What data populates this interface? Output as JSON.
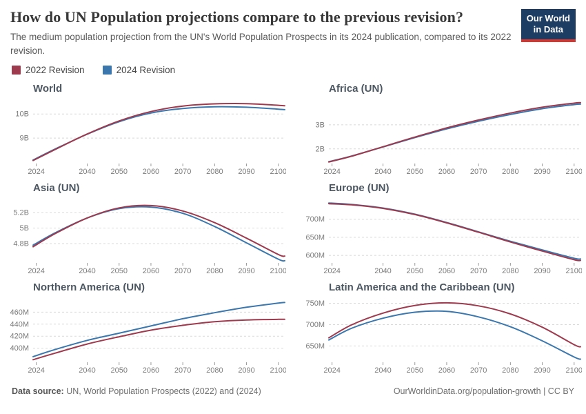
{
  "header": {
    "title": "How do UN Population projections compare to the previous revision?",
    "subtitle": "The medium population projection from the UN's World Population Prospects in its 2024 publication, compared to its 2022 revision.",
    "logo": {
      "line1": "Our World",
      "line2": "in Data"
    }
  },
  "legend": [
    {
      "label": "2022 Revision",
      "color": "#9e3a4d"
    },
    {
      "label": "2024 Revision",
      "color": "#3b77ad"
    }
  ],
  "colors": {
    "revision2022": "#9e3a4d",
    "revision2024": "#3b77ad",
    "grid": "#d8d8d8",
    "tick": "#999999",
    "logo_bg": "#1d3d63",
    "logo_bar": "#d8352e"
  },
  "x_axis": {
    "domain": [
      2023,
      2102
    ],
    "ticks": [
      2024,
      2040,
      2050,
      2060,
      2070,
      2080,
      2090,
      2100
    ]
  },
  "chart_data": [
    {
      "type": "line",
      "title": "World",
      "unit": "billion people",
      "x": [
        2023,
        2030,
        2040,
        2050,
        2060,
        2070,
        2080,
        2090,
        2100,
        2102
      ],
      "ylim": [
        8.0,
        10.55
      ],
      "yticks": [
        {
          "v": 9,
          "label": "9B"
        },
        {
          "v": 10,
          "label": "10B"
        }
      ],
      "series": [
        {
          "name": "2022 Revision",
          "color": "#9e3a4d",
          "values": [
            8.07,
            8.53,
            9.17,
            9.71,
            10.1,
            10.33,
            10.42,
            10.43,
            10.36,
            10.34
          ]
        },
        {
          "name": "2024 Revision",
          "color": "#3b77ad",
          "values": [
            8.09,
            8.55,
            9.16,
            9.68,
            10.04,
            10.23,
            10.3,
            10.28,
            10.2,
            10.18
          ]
        }
      ]
    },
    {
      "type": "line",
      "title": "Africa (UN)",
      "unit": "billion people",
      "x": [
        2023,
        2030,
        2040,
        2050,
        2060,
        2070,
        2080,
        2090,
        2100,
        2102
      ],
      "ylim": [
        1.45,
        4.0
      ],
      "yticks": [
        {
          "v": 2,
          "label": "2B"
        },
        {
          "v": 3,
          "label": "3B"
        }
      ],
      "series": [
        {
          "name": "2022 Revision",
          "color": "#9e3a4d",
          "values": [
            1.46,
            1.69,
            2.09,
            2.49,
            2.87,
            3.2,
            3.49,
            3.73,
            3.9,
            3.92
          ]
        },
        {
          "name": "2024 Revision",
          "color": "#3b77ad",
          "values": [
            1.47,
            1.7,
            2.08,
            2.47,
            2.83,
            3.15,
            3.43,
            3.67,
            3.84,
            3.86
          ]
        }
      ]
    },
    {
      "type": "line",
      "title": "Asia (UN)",
      "unit": "billion people",
      "x": [
        2023,
        2030,
        2040,
        2050,
        2060,
        2070,
        2080,
        2090,
        2100,
        2102
      ],
      "ylim": [
        4.57,
        5.36
      ],
      "yticks": [
        {
          "v": 4.8,
          "label": "4.8B"
        },
        {
          "v": 5,
          "label": "5B"
        },
        {
          "v": 5.2,
          "label": "5.2B"
        }
      ],
      "series": [
        {
          "name": "2022 Revision",
          "color": "#9e3a4d",
          "values": [
            4.76,
            4.93,
            5.13,
            5.26,
            5.29,
            5.22,
            5.07,
            4.87,
            4.66,
            4.64
          ]
        },
        {
          "name": "2024 Revision",
          "color": "#3b77ad",
          "values": [
            4.78,
            4.94,
            5.13,
            5.25,
            5.27,
            5.19,
            5.02,
            4.81,
            4.6,
            4.58
          ]
        }
      ]
    },
    {
      "type": "line",
      "title": "Europe (UN)",
      "unit": "million people",
      "x": [
        2023,
        2030,
        2040,
        2050,
        2060,
        2070,
        2080,
        2090,
        2100,
        2102
      ],
      "ylim": [
        583,
        753
      ],
      "yticks": [
        {
          "v": 600,
          "label": "600M"
        },
        {
          "v": 650,
          "label": "650M"
        },
        {
          "v": 700,
          "label": "700M"
        }
      ],
      "series": [
        {
          "name": "2022 Revision",
          "color": "#9e3a4d",
          "values": [
            743,
            740,
            730,
            713,
            690,
            664,
            637,
            612,
            588,
            586
          ]
        },
        {
          "name": "2024 Revision",
          "color": "#3b77ad",
          "values": [
            745,
            741,
            731,
            714,
            691,
            665,
            639,
            615,
            592,
            590
          ]
        }
      ]
    },
    {
      "type": "line",
      "title": "Northern America (UN)",
      "unit": "million people",
      "x": [
        2023,
        2030,
        2040,
        2050,
        2060,
        2070,
        2080,
        2090,
        2100,
        2102
      ],
      "ylim": [
        379,
        481
      ],
      "yticks": [
        {
          "v": 400,
          "label": "400M"
        },
        {
          "v": 420,
          "label": "420M"
        },
        {
          "v": 440,
          "label": "440M"
        },
        {
          "v": 460,
          "label": "460M"
        }
      ],
      "series": [
        {
          "name": "2022 Revision",
          "color": "#9e3a4d",
          "values": [
            381,
            392,
            407,
            419,
            430,
            438,
            444,
            447,
            448,
            448
          ]
        },
        {
          "name": "2024 Revision",
          "color": "#3b77ad",
          "values": [
            386,
            398,
            413,
            425,
            437,
            449,
            459,
            468,
            475,
            476
          ]
        }
      ]
    },
    {
      "type": "line",
      "title": "Latin America and the Caribbean (UN)",
      "unit": "million people",
      "x": [
        2023,
        2030,
        2040,
        2050,
        2060,
        2070,
        2080,
        2090,
        2100,
        2102
      ],
      "ylim": [
        615,
        759
      ],
      "yticks": [
        {
          "v": 650,
          "label": "650M"
        },
        {
          "v": 700,
          "label": "700M"
        },
        {
          "v": 750,
          "label": "750M"
        }
      ],
      "series": [
        {
          "name": "2022 Revision",
          "color": "#9e3a4d",
          "values": [
            669,
            699,
            727,
            745,
            751,
            744,
            725,
            694,
            653,
            648
          ]
        },
        {
          "name": "2024 Revision",
          "color": "#3b77ad",
          "values": [
            664,
            691,
            715,
            729,
            731,
            718,
            695,
            662,
            624,
            619
          ]
        }
      ]
    }
  ],
  "footer": {
    "source_label": "Data source:",
    "source_text": " UN, World Population Prospects (2022) and (2024)",
    "right_text": "OurWorldinData.org/population-growth | CC BY"
  }
}
